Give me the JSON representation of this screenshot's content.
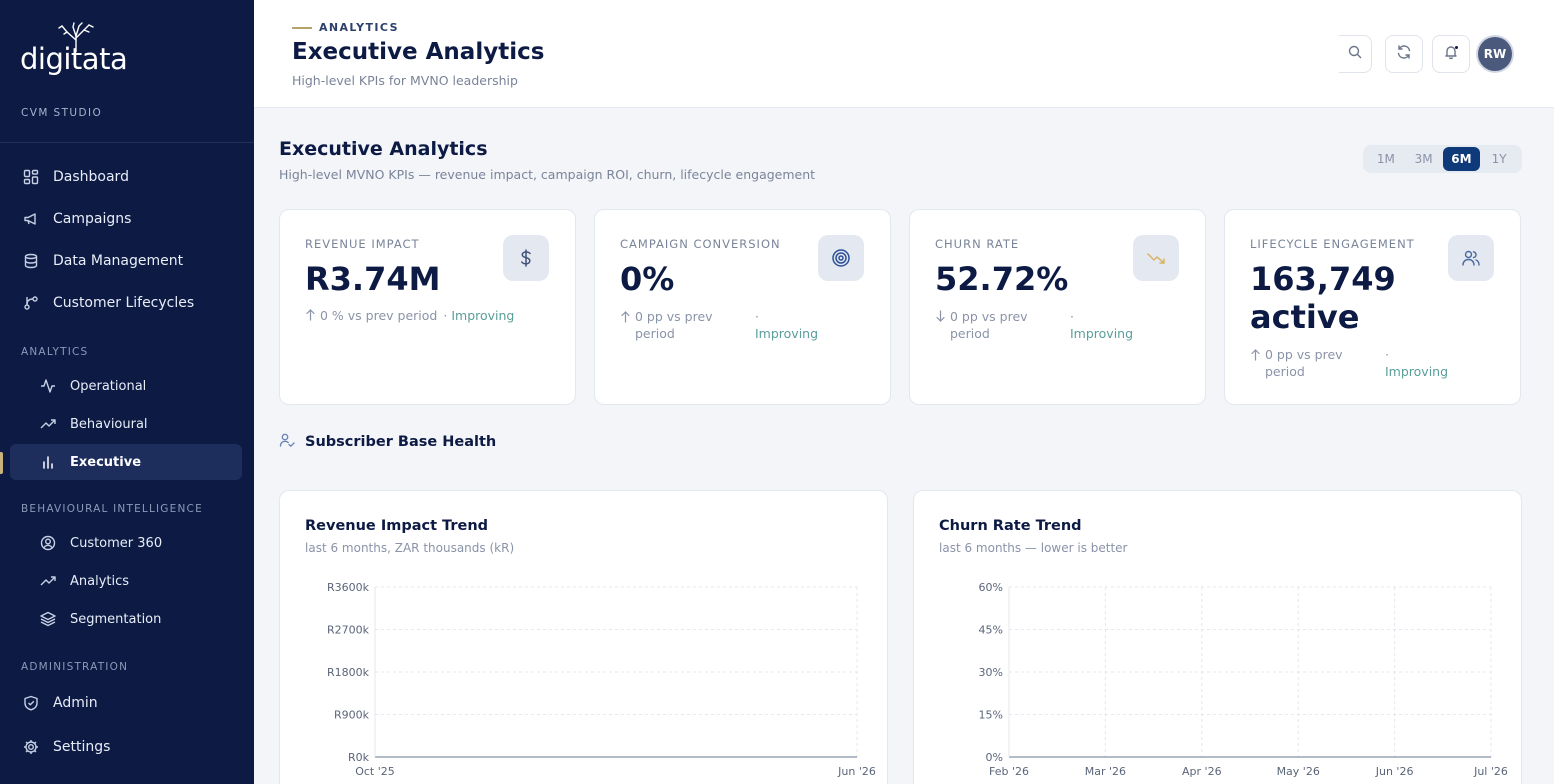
{
  "sidebar": {
    "logo": "digitata",
    "studio": "CVM STUDIO",
    "main_items": [
      {
        "label": "Dashboard",
        "icon": "dashboard-icon"
      },
      {
        "label": "Campaigns",
        "icon": "megaphone-icon"
      },
      {
        "label": "Data Management",
        "icon": "database-icon"
      },
      {
        "label": "Customer Lifecycles",
        "icon": "lifecycle-icon"
      }
    ],
    "analytics_label": "ANALYTICS",
    "analytics_items": [
      {
        "label": "Operational",
        "icon": "activity-icon"
      },
      {
        "label": "Behavioural",
        "icon": "trend-up-icon"
      },
      {
        "label": "Executive",
        "icon": "bar-chart-icon",
        "active": true
      }
    ],
    "bi_label": "BEHAVIOURAL INTELLIGENCE",
    "bi_items": [
      {
        "label": "Customer 360",
        "icon": "user-circle-icon"
      },
      {
        "label": "Analytics",
        "icon": "trend-up-icon"
      },
      {
        "label": "Segmentation",
        "icon": "layers-icon"
      }
    ],
    "admin_label": "ADMINISTRATION",
    "admin_items": [
      {
        "label": "Admin",
        "icon": "shield-icon"
      },
      {
        "label": "Settings",
        "icon": "gear-icon"
      }
    ]
  },
  "header": {
    "kicker": "ANALYTICS",
    "title": "Executive Analytics",
    "subtitle": "High-level KPIs for MVNO leadership",
    "avatar_initials": "RW"
  },
  "page": {
    "title": "Executive Analytics",
    "subtitle": "High-level MVNO KPIs — revenue impact, campaign ROI, churn, lifecycle engagement",
    "ranges": [
      "1M",
      "3M",
      "6M",
      "1Y"
    ],
    "selected_range": "6M"
  },
  "kpis": [
    {
      "label": "REVENUE IMPACT",
      "value": "R3.74M",
      "delta": "0 % vs prev period",
      "sep": "·",
      "status": "Improving",
      "icon": "dollar-icon",
      "direction": "up"
    },
    {
      "label": "CAMPAIGN CONVERSION",
      "value": "0%",
      "delta": "0 pp vs prev period",
      "sep": "·",
      "status": "Improving",
      "icon": "target-icon",
      "direction": "up"
    },
    {
      "label": "CHURN RATE",
      "value": "52.72%",
      "delta": "0 pp vs prev period",
      "sep": "·",
      "status": "Improving",
      "icon": "trend-down-icon",
      "direction": "down"
    },
    {
      "label": "LIFECYCLE ENGAGEMENT",
      "value": "163,749 active",
      "delta": "0 pp vs prev period",
      "sep": "·",
      "status": "Improving",
      "icon": "users-icon",
      "direction": "up"
    }
  ],
  "section": {
    "title": "Subscriber Base Health"
  },
  "chart_data": [
    {
      "type": "line",
      "title": "Revenue Impact Trend",
      "subtitle": "last 6 months, ZAR thousands (kR)",
      "x": [
        "Oct '25",
        "Jun '26"
      ],
      "y_ticks": [
        "R0k",
        "R900k",
        "R1800k",
        "R2700k",
        "R3600k"
      ],
      "ylim": [
        0,
        3600
      ],
      "series": [],
      "grid": true
    },
    {
      "type": "line",
      "title": "Churn Rate Trend",
      "subtitle": "last 6 months — lower is better",
      "x": [
        "Feb '26",
        "Mar '26",
        "Apr '26",
        "May '26",
        "Jun '26",
        "Jul '26"
      ],
      "y_ticks": [
        "0%",
        "15%",
        "30%",
        "45%",
        "60%"
      ],
      "ylim": [
        0,
        60
      ],
      "series": [],
      "grid": true
    }
  ],
  "colors": {
    "sidebar_bg": "#0c1a44",
    "accent": "#0f3a7a",
    "status_improving": "#5a9e9a",
    "kicker_line": "#b7a26a"
  }
}
